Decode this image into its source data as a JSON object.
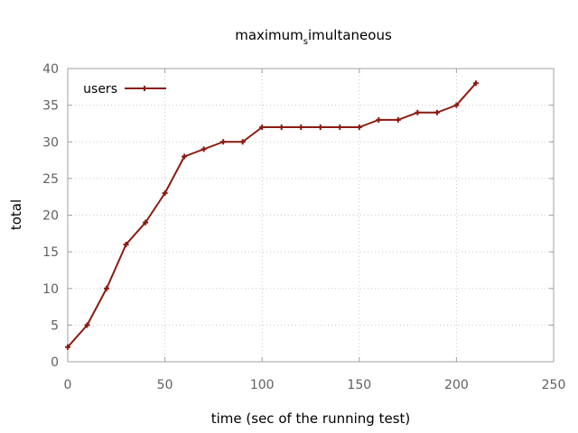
{
  "chart_data": {
    "type": "line",
    "title": "maximum",
    "title_subscript": "s",
    "title_tail": "imultaneous",
    "xlabel": "time (sec of the running test)",
    "ylabel": "total",
    "xlim": [
      0,
      250
    ],
    "ylim": [
      0,
      40
    ],
    "xticks": [
      0,
      50,
      100,
      150,
      200,
      250
    ],
    "yticks": [
      0,
      5,
      10,
      15,
      20,
      25,
      30,
      35,
      40
    ],
    "grid": true,
    "legend_position": "top-left",
    "series": [
      {
        "name": "users",
        "color": "#8b1a10",
        "marker": "plus",
        "x": [
          0,
          10,
          20,
          30,
          40,
          50,
          60,
          70,
          80,
          90,
          100,
          110,
          120,
          130,
          140,
          150,
          160,
          170,
          180,
          190,
          200,
          210
        ],
        "y": [
          2,
          5,
          10,
          16,
          19,
          23,
          28,
          29,
          30,
          30,
          32,
          32,
          32,
          32,
          32,
          32,
          33,
          33,
          34,
          34,
          35,
          38
        ]
      }
    ]
  }
}
